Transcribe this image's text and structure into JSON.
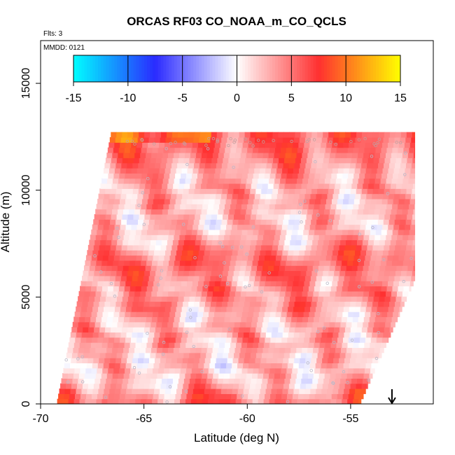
{
  "chart_data": {
    "type": "heatmap",
    "title": "ORCAS RF03 CO_NOAA_m_CO_QCLS",
    "flights_label": "Flts: 3",
    "date_label": "MMDD: 0121",
    "xlabel": "Latitude (deg N)",
    "ylabel": "Altitude (m)",
    "xlim": [
      -70,
      -51
    ],
    "ylim": [
      0,
      17000
    ],
    "x_ticks": [
      -70,
      -65,
      -60,
      -55
    ],
    "y_ticks": [
      0,
      5000,
      10000,
      15000
    ],
    "colorbar": {
      "ticks": [
        -15,
        -10,
        -5,
        0,
        5,
        10,
        15
      ],
      "range": [
        -15,
        15
      ],
      "colors": [
        "#00ffff",
        "#2a2aff",
        "#ffffff",
        "#ff3030",
        "#ffff00"
      ]
    },
    "data_extent": {
      "bottom_left_lat": -69.2,
      "top_left_lat": -66.6,
      "top_right_lat": -51.9,
      "bottom_right_lat": -54.5,
      "top_altitude": 12500
    },
    "bands": [
      {
        "alt": 0,
        "value": 5
      },
      {
        "alt": 600,
        "value": 3
      },
      {
        "alt": 1200,
        "value": 1
      },
      {
        "alt": 1800,
        "value": 3
      },
      {
        "alt": 2400,
        "value": 1.5
      },
      {
        "alt": 3000,
        "value": 4
      },
      {
        "alt": 3600,
        "value": 1.5
      },
      {
        "alt": 4200,
        "value": 3
      },
      {
        "alt": 4800,
        "value": 5
      },
      {
        "alt": 5400,
        "value": 3
      },
      {
        "alt": 6000,
        "value": 5
      },
      {
        "alt": 6600,
        "value": 6
      },
      {
        "alt": 7200,
        "value": 4
      },
      {
        "alt": 7800,
        "value": 1.5
      },
      {
        "alt": 8400,
        "value": 3
      },
      {
        "alt": 9000,
        "value": 1.5
      },
      {
        "alt": 9600,
        "value": 4
      },
      {
        "alt": 10200,
        "value": 2
      },
      {
        "alt": 10800,
        "value": 3.5
      },
      {
        "alt": 11400,
        "value": 4.5
      },
      {
        "alt": 12000,
        "value": 6
      }
    ],
    "arrow_lat": -53,
    "arrow_icon": "down-arrow-icon"
  }
}
